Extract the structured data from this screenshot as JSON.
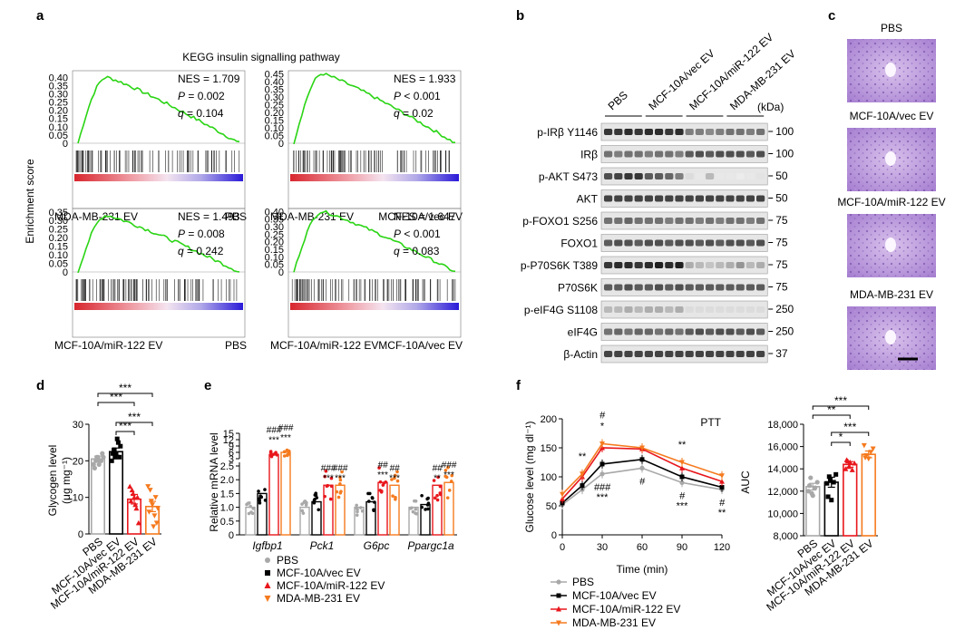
{
  "panel_letters": [
    "a",
    "b",
    "c",
    "d",
    "e",
    "f"
  ],
  "a": {
    "title": "KEGG insulin signalling pathway",
    "ylabel": "Enrichment score",
    "plots": [
      {
        "stats": [
          "NES = 1.709",
          "P = 0.002",
          "q = 0.104"
        ],
        "stat_parts": [
          {
            "k": "NES",
            "v": " = 1.709",
            "it": false
          },
          {
            "k": "P",
            "v": " = 0.002",
            "it": true
          },
          {
            "k": "q",
            "v": " = 0.104",
            "it": true
          }
        ],
        "yticks": [
          "0.40",
          "0.35",
          "0.30",
          "0.25",
          "0.20",
          "0.15",
          "0.10",
          "0.05",
          "0"
        ],
        "ytick_values": [
          0.4,
          0.35,
          0.3,
          0.25,
          0.2,
          0.15,
          0.1,
          0.05,
          0
        ],
        "ymax": 0.44,
        "peak": 0.4,
        "left": "MDA-MB-231 EV",
        "right": "PBS"
      },
      {
        "stats": [
          "NES = 1.933",
          "P < 0.001",
          "q = 0.02"
        ],
        "stat_parts": [
          {
            "k": "NES",
            "v": " = 1.933",
            "it": false
          },
          {
            "k": "P",
            "v": " < 0.001",
            "it": true
          },
          {
            "k": "q",
            "v": " = 0.02",
            "it": true
          }
        ],
        "yticks": [
          "0.45",
          "0.40",
          "0.35",
          "0.30",
          "0.25",
          "0.20",
          "0.15",
          "0.10",
          "0.05",
          "0"
        ],
        "ytick_values": [
          0.45,
          0.4,
          0.35,
          0.3,
          0.25,
          0.2,
          0.15,
          0.1,
          0.05,
          0
        ],
        "ymax": 0.47,
        "peak": 0.45,
        "left": "MDA-MB-231 EV",
        "right": "MCF-10A/vec EV"
      },
      {
        "stats": [
          "NES = 1.493",
          "P = 0.008",
          "q = 0.242"
        ],
        "stat_parts": [
          {
            "k": "NES",
            "v": " = 1.493",
            "it": false
          },
          {
            "k": "P",
            "v": " = 0.008",
            "it": true
          },
          {
            "k": "q",
            "v": " = 0.242",
            "it": true
          }
        ],
        "yticks": [
          "0.35",
          "0.30",
          "0.25",
          "0.20",
          "0.15",
          "0.10",
          "0.05",
          "0"
        ],
        "ytick_values": [
          0.35,
          0.3,
          0.25,
          0.2,
          0.15,
          0.1,
          0.05,
          0
        ],
        "ymax": 0.37,
        "peak": 0.33,
        "left": "MCF-10A/miR-122 EV",
        "right": "PBS"
      },
      {
        "stats": [
          "NES = 1.647",
          "P < 0.001",
          "q = 0.083"
        ],
        "stat_parts": [
          {
            "k": "NES",
            "v": " = 1.647",
            "it": false
          },
          {
            "k": "P",
            "v": " < 0.001",
            "it": true
          },
          {
            "k": "q",
            "v": " = 0.083",
            "it": true
          }
        ],
        "yticks": [
          "0.40",
          "0.35",
          "0.30",
          "0.25",
          "0.20",
          "0.15",
          "0.10",
          "0.05",
          "0"
        ],
        "ytick_values": [
          0.4,
          0.35,
          0.3,
          0.25,
          0.2,
          0.15,
          0.1,
          0.05,
          0
        ],
        "ymax": 0.42,
        "peak": 0.4,
        "left": "MCF-10A/miR-122 EV",
        "right": "MCF-10A/vec EV"
      }
    ]
  },
  "b": {
    "groups": [
      "PBS",
      "MCF-10A/vec EV",
      "MCF-10A/miR-122 EV",
      "MDA-MB-231 EV"
    ],
    "kda_label": "(kDa)",
    "bands": [
      {
        "label": "p-IRβ Y1146",
        "kda": "100",
        "pattern": [
          0.85,
          0.85,
          0.9,
          0.85,
          0.9,
          0.9,
          0.85,
          0.9,
          0.55,
          0.55,
          0.5,
          0.55,
          0.6,
          0.6,
          0.55,
          0.6
        ]
      },
      {
        "label": "IRβ",
        "kda": "100",
        "pattern": [
          0.6,
          0.55,
          0.6,
          0.6,
          0.55,
          0.6,
          0.6,
          0.55,
          0.7,
          0.75,
          0.7,
          0.75,
          0.75,
          0.75,
          0.7,
          0.75
        ]
      },
      {
        "label": "p-AKT S473",
        "kda": "50",
        "pattern": [
          0.75,
          0.8,
          0.85,
          0.85,
          0.7,
          0.7,
          0.65,
          0.55,
          0.15,
          0.1,
          0.3,
          0.1,
          0.1,
          0.08,
          0.1,
          0.12
        ]
      },
      {
        "label": "AKT",
        "kda": "50",
        "pattern": [
          0.8,
          0.8,
          0.8,
          0.8,
          0.8,
          0.8,
          0.8,
          0.8,
          0.8,
          0.8,
          0.8,
          0.8,
          0.8,
          0.8,
          0.8,
          0.8
        ]
      },
      {
        "label": "p-FOXO1 S256",
        "kda": "75",
        "pattern": [
          0.6,
          0.6,
          0.65,
          0.6,
          0.6,
          0.6,
          0.55,
          0.6,
          0.6,
          0.55,
          0.6,
          0.55,
          0.6,
          0.6,
          0.55,
          0.6
        ]
      },
      {
        "label": "FOXO1",
        "kda": "75",
        "pattern": [
          0.7,
          0.75,
          0.75,
          0.7,
          0.75,
          0.75,
          0.7,
          0.75,
          0.75,
          0.7,
          0.75,
          0.7,
          0.75,
          0.75,
          0.7,
          0.75
        ]
      },
      {
        "label": "p-P70S6K T389",
        "kda": "75",
        "pattern": [
          0.85,
          0.9,
          0.9,
          0.85,
          0.9,
          0.95,
          0.9,
          0.95,
          0.35,
          0.3,
          0.25,
          0.3,
          0.35,
          0.45,
          0.3,
          0.35
        ]
      },
      {
        "label": "P70S6K",
        "kda": "75",
        "pattern": [
          0.7,
          0.7,
          0.75,
          0.7,
          0.7,
          0.75,
          0.7,
          0.75,
          0.7,
          0.7,
          0.7,
          0.7,
          0.7,
          0.7,
          0.7,
          0.7
        ]
      },
      {
        "label": "p-eIF4G S1108",
        "kda": "250",
        "pattern": [
          0.3,
          0.3,
          0.35,
          0.3,
          0.35,
          0.35,
          0.3,
          0.35,
          0.15,
          0.15,
          0.15,
          0.15,
          0.15,
          0.15,
          0.15,
          0.15
        ]
      },
      {
        "label": "eIF4G",
        "kda": "250",
        "pattern": [
          0.6,
          0.65,
          0.6,
          0.65,
          0.65,
          0.6,
          0.65,
          0.6,
          0.7,
          0.75,
          0.7,
          0.75,
          0.75,
          0.7,
          0.75,
          0.7
        ]
      },
      {
        "label": "β-Actin",
        "kda": "37",
        "pattern": [
          0.8,
          0.8,
          0.8,
          0.8,
          0.8,
          0.8,
          0.8,
          0.8,
          0.8,
          0.8,
          0.8,
          0.8,
          0.8,
          0.8,
          0.8,
          0.8
        ]
      }
    ]
  },
  "c": {
    "labels": [
      "PBS",
      "MCF-10A/vec EV",
      "MCF-10A/miR-122 EV",
      "MDA-MB-231 EV"
    ]
  },
  "colors": {
    "pbs": "#a8a8a8",
    "vec": "#000000",
    "mir": "#e8171c",
    "mda": "#f57a1e",
    "gsea_line": "#2ad414"
  },
  "groups": [
    "PBS",
    "MCF-10A/vec EV",
    "MCF-10A/miR-122 EV",
    "MDA-MB-231 EV"
  ],
  "chart_data": [
    {
      "panel": "d",
      "type": "bar",
      "categories": [
        "PBS",
        "MCF-10A/vec EV",
        "MCF-10A/miR-122 EV",
        "MDA-MB-231 EV"
      ],
      "values": [
        20.5,
        22.5,
        9.5,
        7.5
      ],
      "errors": [
        0.8,
        1.0,
        1.3,
        1.4
      ],
      "points": [
        [
          19,
          20,
          21,
          20,
          22,
          18,
          21,
          19,
          20,
          21
        ],
        [
          20,
          23,
          22,
          25,
          24,
          22,
          21,
          26,
          21
        ],
        [
          13,
          12,
          10,
          7,
          3,
          9,
          11,
          8,
          10
        ],
        [
          13,
          12,
          8,
          5,
          3,
          6,
          9,
          2,
          10,
          7
        ]
      ],
      "ylabel": "Glycogen level",
      "yunit": "(μg mg⁻¹)",
      "ylim": [
        0,
        30
      ],
      "yticks": [
        "0",
        "10",
        "20",
        "30"
      ],
      "ytick_values": [
        0,
        10,
        20,
        30
      ],
      "significance": [
        "***",
        "***",
        "***",
        "***"
      ]
    },
    {
      "panel": "e",
      "type": "bar",
      "categories": [
        "Igfbp1",
        "Pck1",
        "G6pc",
        "Ppargc1a"
      ],
      "series": [
        {
          "name": "PBS",
          "values": [
            1.0,
            1.0,
            1.0,
            1.0
          ],
          "sig": [
            "",
            "",
            "",
            ""
          ]
        },
        {
          "name": "MCF-10A/vec EV",
          "values": [
            1.5,
            1.2,
            1.2,
            1.1
          ],
          "sig": [
            "",
            "",
            "",
            ""
          ]
        },
        {
          "name": "MCF-10A/miR-122 EV",
          "values": [
            5.0,
            1.8,
            1.9,
            1.8
          ],
          "sig": [
            "###\n***",
            "###\n***",
            "##\n***",
            "##\n**"
          ]
        },
        {
          "name": "MDA-MB-231 EV",
          "values": [
            6.0,
            1.8,
            1.8,
            1.9
          ],
          "sig": [
            "###\n***",
            "###\n***",
            "##\n***",
            "###\n***"
          ]
        }
      ],
      "ylabel": "Relative mRNA level",
      "yticks": [
        "0",
        "0.5",
        "1.0",
        "1.5",
        "2.0",
        "2.5",
        "3",
        "6",
        "9",
        "12",
        "15"
      ],
      "ytick_values": [
        0,
        0.5,
        1.0,
        1.5,
        2.0,
        2.5,
        3,
        6,
        9,
        12,
        15
      ]
    },
    {
      "panel": "f-ptt",
      "type": "line",
      "annotation": "PTT",
      "x": [
        0,
        15,
        30,
        60,
        90,
        120
      ],
      "series": [
        {
          "name": "PBS",
          "values": [
            52,
            78,
            105,
            115,
            90,
            78
          ]
        },
        {
          "name": "MCF-10A/vec EV",
          "values": [
            55,
            85,
            122,
            130,
            100,
            82
          ]
        },
        {
          "name": "MCF-10A/miR-122 EV",
          "values": [
            62,
            100,
            150,
            148,
            115,
            92
          ]
        },
        {
          "name": "MDA-MB-231 EV",
          "values": [
            70,
            105,
            157,
            150,
            125,
            102
          ]
        }
      ],
      "sig_annotations": [
        {
          "x": 15,
          "text": "**",
          "pos": "above"
        },
        {
          "x": 30,
          "text": "#",
          "pos": "above2"
        },
        {
          "x": 30,
          "text": "*",
          "pos": "above"
        },
        {
          "x": 30,
          "text": "###",
          "pos": "below"
        },
        {
          "x": 30,
          "text": "***",
          "pos": "below2"
        },
        {
          "x": 60,
          "text": "#",
          "pos": "below"
        },
        {
          "x": 90,
          "text": "**",
          "pos": "above"
        },
        {
          "x": 90,
          "text": "#",
          "pos": "below"
        },
        {
          "x": 90,
          "text": "***",
          "pos": "below2"
        },
        {
          "x": 120,
          "text": "#",
          "pos": "below"
        },
        {
          "x": 120,
          "text": "**",
          "pos": "below2"
        }
      ],
      "xlabel": "Time (min)",
      "ylabel": "Glucose level (mg dl⁻¹)",
      "xticks": [
        "0",
        "30",
        "60",
        "90",
        "120"
      ],
      "xtick_values": [
        0,
        30,
        60,
        90,
        120
      ],
      "yticks": [
        "0",
        "50",
        "100",
        "150",
        "200"
      ],
      "ytick_values": [
        0,
        50,
        100,
        150,
        200
      ],
      "ylim": [
        0,
        200
      ],
      "legend": "bottom"
    },
    {
      "panel": "f-auc",
      "type": "bar",
      "categories": [
        "PBS",
        "MCF-10A/vec EV",
        "MCF-10A/miR-122 EV",
        "MDA-MB-231 EV"
      ],
      "values": [
        12400,
        12800,
        14400,
        15300
      ],
      "errors": [
        300,
        450,
        250,
        300
      ],
      "points": [
        [
          12000,
          13200,
          11600,
          12300,
          12800,
          12500,
          11800
        ],
        [
          12700,
          13300,
          11200,
          12800,
          13500,
          11500,
          13000
        ],
        [
          14000,
          14700,
          14600,
          13900,
          14500,
          14800,
          14200
        ],
        [
          16100,
          15200,
          14900,
          15500,
          15800,
          15000
        ]
      ],
      "ylabel": "AUC",
      "ylim": [
        8000,
        18000
      ],
      "yticks": [
        "8,000",
        "10,000",
        "12,000",
        "14,000",
        "16,000",
        "18,000"
      ],
      "ytick_values": [
        8000,
        10000,
        12000,
        14000,
        16000,
        18000
      ],
      "significance": [
        "***",
        "**",
        "***",
        "*"
      ]
    }
  ]
}
